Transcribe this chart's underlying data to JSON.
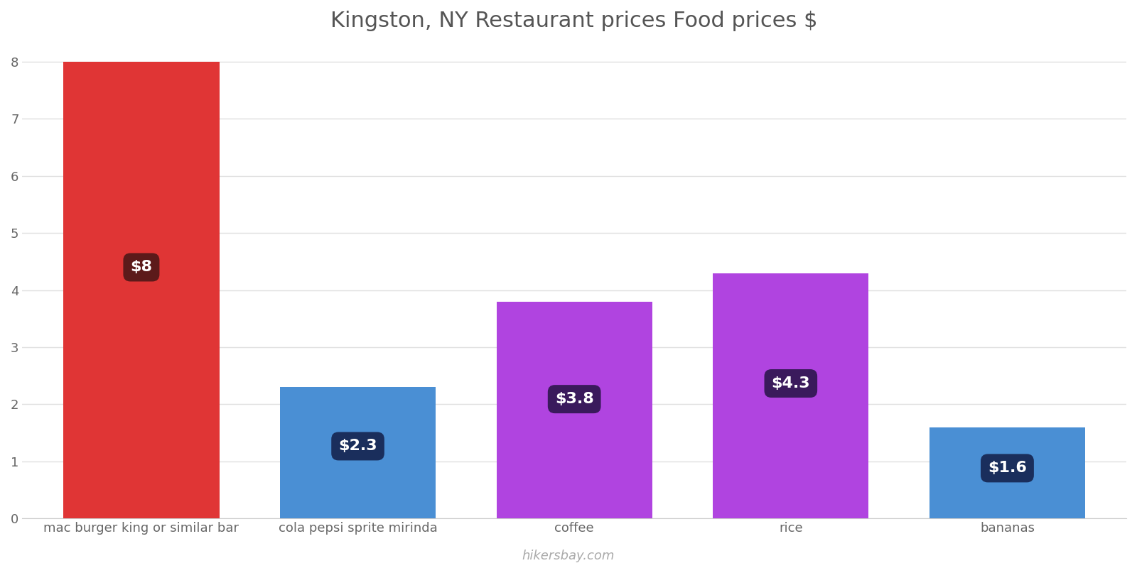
{
  "title": "Kingston, NY Restaurant prices Food prices $",
  "categories": [
    "mac burger king or similar bar",
    "cola pepsi sprite mirinda",
    "coffee",
    "rice",
    "bananas"
  ],
  "values": [
    8.0,
    2.3,
    3.8,
    4.3,
    1.6
  ],
  "bar_colors": [
    "#e03535",
    "#4a8fd4",
    "#b044e0",
    "#b044e0",
    "#4a8fd4"
  ],
  "label_bg_colors": [
    "#5c1a1a",
    "#1a2e5c",
    "#3a1a5c",
    "#3a1a5c",
    "#1a2e5c"
  ],
  "labels": [
    "$8",
    "$2.3",
    "$3.8",
    "$4.3",
    "$1.6"
  ],
  "ylim": [
    0,
    8.3
  ],
  "yticks": [
    0,
    1,
    2,
    3,
    4,
    5,
    6,
    7,
    8
  ],
  "watermark": "hikersbay.com",
  "background_color": "#ffffff",
  "grid_color": "#e0e0e0",
  "title_color": "#555555",
  "title_fontsize": 22,
  "tick_label_fontsize": 13,
  "watermark_color": "#aaaaaa",
  "label_fontsize": 16,
  "bar_width": 0.72
}
